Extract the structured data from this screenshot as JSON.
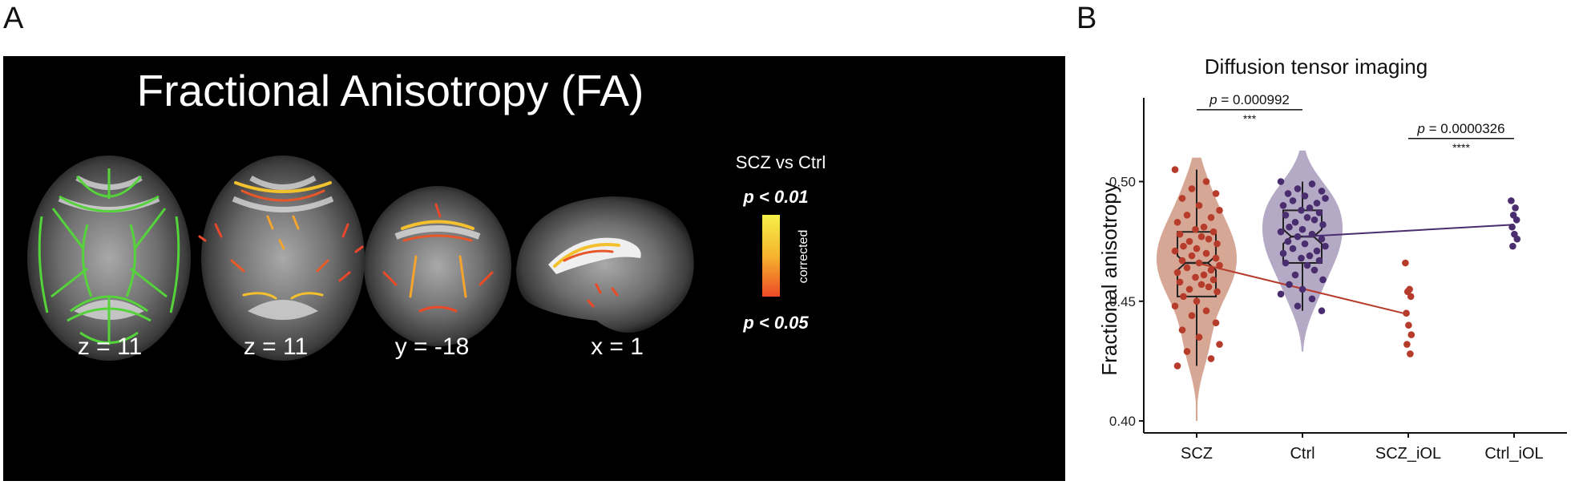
{
  "panel_a": {
    "letter": "A",
    "title": "Fractional Anisotropy (FA)",
    "legend_title": "SCZ vs Ctrl",
    "legend_top": "p < 0.01",
    "legend_bottom": "p < 0.05",
    "legend_side": "corrected",
    "colorbar_colors": [
      "#f5f04a",
      "#f5b52e",
      "#ec4a26"
    ],
    "slices": [
      {
        "label": "z = 11",
        "view": "axial",
        "overlay": "skeleton"
      },
      {
        "label": "z = 11",
        "view": "axial",
        "overlay": "significance"
      },
      {
        "label": "y = -18",
        "view": "coronal",
        "overlay": "significance"
      },
      {
        "label": "x = 1",
        "view": "sagittal",
        "overlay": "significance"
      }
    ]
  },
  "panel_b": {
    "letter": "B",
    "chart_data": {
      "type": "violin",
      "title": "Diffusion tensor imaging",
      "ylabel": "Fractional anisotropy",
      "xlabel": "",
      "ylim": [
        0.395,
        0.535
      ],
      "yticks": [
        0.4,
        0.45,
        0.5
      ],
      "ytick_labels": [
        "0.40",
        "0.45",
        "0.50"
      ],
      "categories": [
        "SCZ",
        "Ctrl",
        "SCZ_iOL",
        "Ctrl_iOL"
      ],
      "colors": {
        "SCZ": "#b73b2a",
        "Ctrl": "#4a2d6e"
      },
      "violin_fill": {
        "SCZ": "#c98a72",
        "Ctrl": "#9c8db3"
      },
      "violins": [
        {
          "category": "SCZ",
          "min": 0.4,
          "max": 0.51
        },
        {
          "category": "Ctrl",
          "min": 0.429,
          "max": 0.513
        }
      ],
      "boxplots": [
        {
          "category": "SCZ",
          "q1": 0.452,
          "median": 0.466,
          "q3": 0.479,
          "whisker_low": 0.423,
          "whisker_high": 0.505
        },
        {
          "category": "Ctrl",
          "q1": 0.466,
          "median": 0.477,
          "q3": 0.488,
          "whisker_low": 0.446,
          "whisker_high": 0.5
        }
      ],
      "points": {
        "SCZ": [
          0.505,
          0.5,
          0.497,
          0.495,
          0.493,
          0.49,
          0.488,
          0.486,
          0.485,
          0.483,
          0.481,
          0.48,
          0.479,
          0.478,
          0.477,
          0.476,
          0.475,
          0.474,
          0.473,
          0.472,
          0.471,
          0.47,
          0.469,
          0.468,
          0.467,
          0.466,
          0.465,
          0.464,
          0.463,
          0.462,
          0.461,
          0.46,
          0.459,
          0.458,
          0.457,
          0.456,
          0.455,
          0.454,
          0.452,
          0.45,
          0.448,
          0.446,
          0.444,
          0.441,
          0.438,
          0.435,
          0.432,
          0.429,
          0.426,
          0.423
        ],
        "Ctrl": [
          0.5,
          0.499,
          0.497,
          0.496,
          0.495,
          0.494,
          0.493,
          0.492,
          0.491,
          0.49,
          0.489,
          0.488,
          0.487,
          0.486,
          0.485,
          0.484,
          0.483,
          0.482,
          0.481,
          0.48,
          0.479,
          0.478,
          0.477,
          0.476,
          0.475,
          0.474,
          0.473,
          0.472,
          0.471,
          0.47,
          0.469,
          0.468,
          0.467,
          0.466,
          0.465,
          0.463,
          0.461,
          0.459,
          0.457,
          0.455,
          0.453,
          0.451,
          0.448,
          0.446
        ],
        "SCZ_iOL": [
          0.466,
          0.455,
          0.454,
          0.452,
          0.445,
          0.44,
          0.436,
          0.432,
          0.428
        ],
        "Ctrl_iOL": [
          0.492,
          0.489,
          0.486,
          0.484,
          0.481,
          0.478,
          0.476,
          0.473
        ]
      },
      "trend_lines": [
        {
          "group": "SCZ",
          "from_category": "SCZ",
          "from_y": 0.466,
          "to_category": "SCZ_iOL",
          "to_y": 0.4445
        },
        {
          "group": "Ctrl",
          "from_category": "Ctrl",
          "from_y": 0.477,
          "to_category": "Ctrl_iOL",
          "to_y": 0.482
        }
      ],
      "annotations": [
        {
          "from_category": "SCZ",
          "to_category": "Ctrl",
          "y": 0.53,
          "p_label": "p",
          "p_value": " = 0.000992",
          "stars": "***"
        },
        {
          "from_category": "SCZ_iOL",
          "to_category": "Ctrl_iOL",
          "y": 0.518,
          "p_label": "p",
          "p_value": " = 0.0000326",
          "stars": "****"
        }
      ],
      "grid": false,
      "legend": "none"
    }
  }
}
